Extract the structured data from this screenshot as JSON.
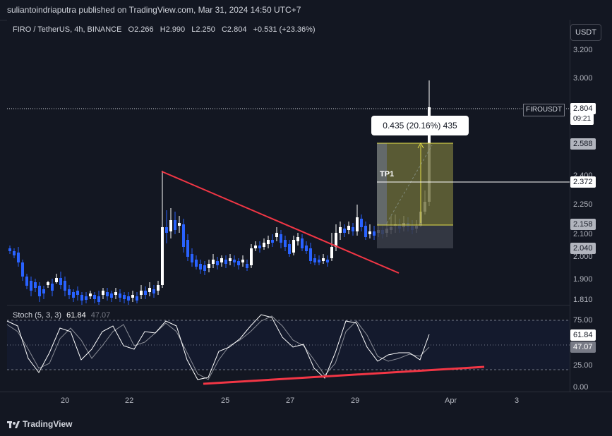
{
  "header": {
    "published": "suliantoindriaputra published on TradingView.com, Mar 31, 2024 14:50 UTC+7"
  },
  "legend": {
    "symbol": "FIRO / TetherUS, 4h, BINANCE",
    "o_label": "O",
    "o": "2.266",
    "h_label": "H",
    "h": "2.990",
    "l_label": "L",
    "l": "2.250",
    "c_label": "C",
    "c": "2.804",
    "change": "+0.531 (+23.36%)"
  },
  "currency_button": "USDT",
  "price_axis": {
    "ticks": [
      "3.200",
      "3.000",
      "2.400",
      "2.250",
      "2.100",
      "2.000",
      "1.900",
      "1.810"
    ],
    "labels": {
      "last_price": "2.804",
      "countdown": "09:21",
      "target": "2.588",
      "entry_line": "2.372",
      "entry": "2.158",
      "stop": "2.040"
    },
    "symbol_tag": "FIROUSDT"
  },
  "tool": {
    "measure_text": "0.435 (20.16%) 435",
    "tp_label": "TP1"
  },
  "stoch": {
    "title": "Stoch (5, 3, 3)",
    "k": "61.84",
    "d": "47.07",
    "ticks": [
      "75.00",
      "25.00",
      "0.00"
    ],
    "k_label": "61.84",
    "d_label": "47.07"
  },
  "time_axis": {
    "ticks": [
      "20",
      "22",
      "25",
      "27",
      "29",
      "Apr",
      "3"
    ]
  },
  "footer": {
    "brand": "TradingView"
  },
  "colors": {
    "bg": "#131722",
    "up": "#ffffff",
    "down": "#2962ff",
    "trendline": "#f23645",
    "target_zone": "#6b6b3a"
  },
  "chart_data": {
    "type": "candlestick",
    "symbol": "FIRO / TetherUS",
    "interval": "4h",
    "ylim": [
      1.81,
      3.25
    ],
    "last": {
      "open": 2.266,
      "high": 2.99,
      "low": 2.25,
      "close": 2.804
    },
    "position": {
      "entry": 2.158,
      "target": 2.588,
      "stop": 2.04
    }
  }
}
